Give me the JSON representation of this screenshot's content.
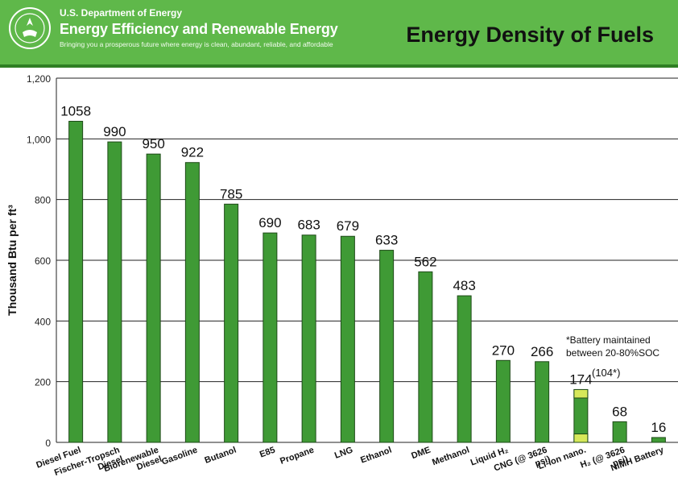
{
  "header": {
    "org": "U.S. Department of Energy",
    "program": "Energy Efficiency and Renewable Energy",
    "tagline": "Bringing you a prosperous future where energy is clean, abundant, reliable, and affordable"
  },
  "colors": {
    "header_bg": "#5fb84a",
    "bar": "#3f9a35",
    "bar_edge": "#1e4a18",
    "battery_segment": "#d6e85a"
  },
  "chart_data": {
    "type": "bar",
    "title": "Energy Density of Fuels",
    "ylabel": "Thousand Btu per ft³",
    "xlabel": "",
    "ylim": [
      0,
      1200
    ],
    "yticks": [
      0,
      200,
      400,
      600,
      800,
      1000,
      1200
    ],
    "ytick_labels": [
      "0",
      "200",
      "400",
      "600",
      "800",
      "1,000",
      "1,200"
    ],
    "grid": true,
    "categories": [
      "Diesel Fuel",
      "Fischer-Tropsch Diesel",
      "Biorenewable Diesel",
      "Gasoline",
      "Butanol",
      "E85",
      "Propane",
      "LNG",
      "Ethanol",
      "DME",
      "Methanol",
      "Liquid H₂",
      "CNG (@ 3626 psi)",
      "Li-ion nano.",
      "H₂ (@ 3626 psi)",
      "NiMH Battery"
    ],
    "values": [
      1058,
      990,
      950,
      922,
      785,
      690,
      683,
      679,
      633,
      562,
      483,
      270,
      266,
      174,
      68,
      16
    ],
    "value_labels": [
      "1058",
      "990",
      "950",
      "922",
      "785",
      "690",
      "683",
      "679",
      "633",
      "562",
      "483",
      "270",
      "266",
      "174",
      "68",
      "16"
    ],
    "annotations": {
      "battery_note": "*Battery maintained between 20-80%SOC",
      "li_ion_maintained": "(104*)"
    }
  }
}
